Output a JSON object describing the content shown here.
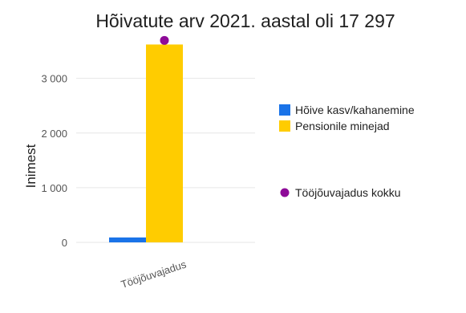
{
  "chart_data": {
    "type": "bar",
    "title": "Hõivatute arv 2021. aastal oli 17 297",
    "xlabel": "",
    "ylabel": "Inimest",
    "categories": [
      "Tööjõuvajadus"
    ],
    "ylim": [
      0,
      3700
    ],
    "yticks": [
      0,
      1000,
      2000,
      3000
    ],
    "ytick_labels": [
      "0",
      "1 000",
      "2 000",
      "3 000"
    ],
    "grid": true,
    "legend_position": "right",
    "series": [
      {
        "name": "Hõive kasv/kahanemine",
        "kind": "bar",
        "color": "#1a73e8",
        "values": [
          90
        ]
      },
      {
        "name": "Pensionile minejad",
        "kind": "bar",
        "color": "#ffcc00",
        "values": [
          3620
        ]
      },
      {
        "name": "Tööjõuvajadus kokku",
        "kind": "point",
        "color": "#8e0b98",
        "values": [
          3710
        ]
      }
    ]
  }
}
